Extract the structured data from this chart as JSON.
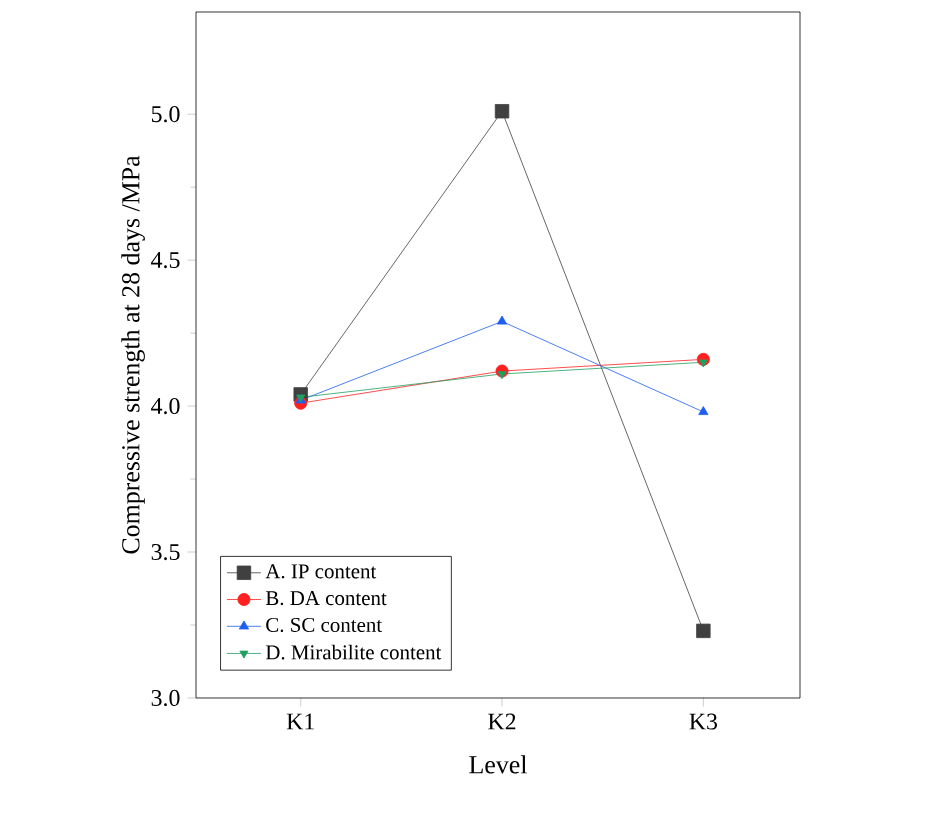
{
  "chart_data": {
    "type": "line",
    "xlabel": "Level",
    "ylabel": "Compressive strength at 28 days /MPa",
    "categories": [
      "K1",
      "K2",
      "K3"
    ],
    "series": [
      {
        "name": "A. IP content",
        "color": "#404040",
        "marker": "square",
        "values": [
          4.04,
          5.01,
          3.23
        ]
      },
      {
        "name": "B. DA content",
        "color": "#ff2020",
        "marker": "circle",
        "values": [
          4.01,
          4.12,
          4.16
        ]
      },
      {
        "name": "C. SC content",
        "color": "#1e5ef0",
        "marker": "triangle",
        "values": [
          4.02,
          4.29,
          3.98
        ]
      },
      {
        "name": "D. Mirabilite content",
        "color": "#20a060",
        "marker": "triangle down",
        "values": [
          4.03,
          4.11,
          4.15
        ]
      }
    ],
    "ylim": [
      3.0,
      5.35
    ],
    "yticks": [
      {
        "value": 3.0,
        "label": "3.0"
      },
      {
        "value": 3.5,
        "label": "3.5"
      },
      {
        "value": 4.0,
        "label": "4.0"
      },
      {
        "value": 4.5,
        "label": "4.5"
      },
      {
        "value": 5.0,
        "label": "5.0"
      }
    ],
    "legend": "bottom left",
    "grid": false,
    "line_style": "solid"
  }
}
